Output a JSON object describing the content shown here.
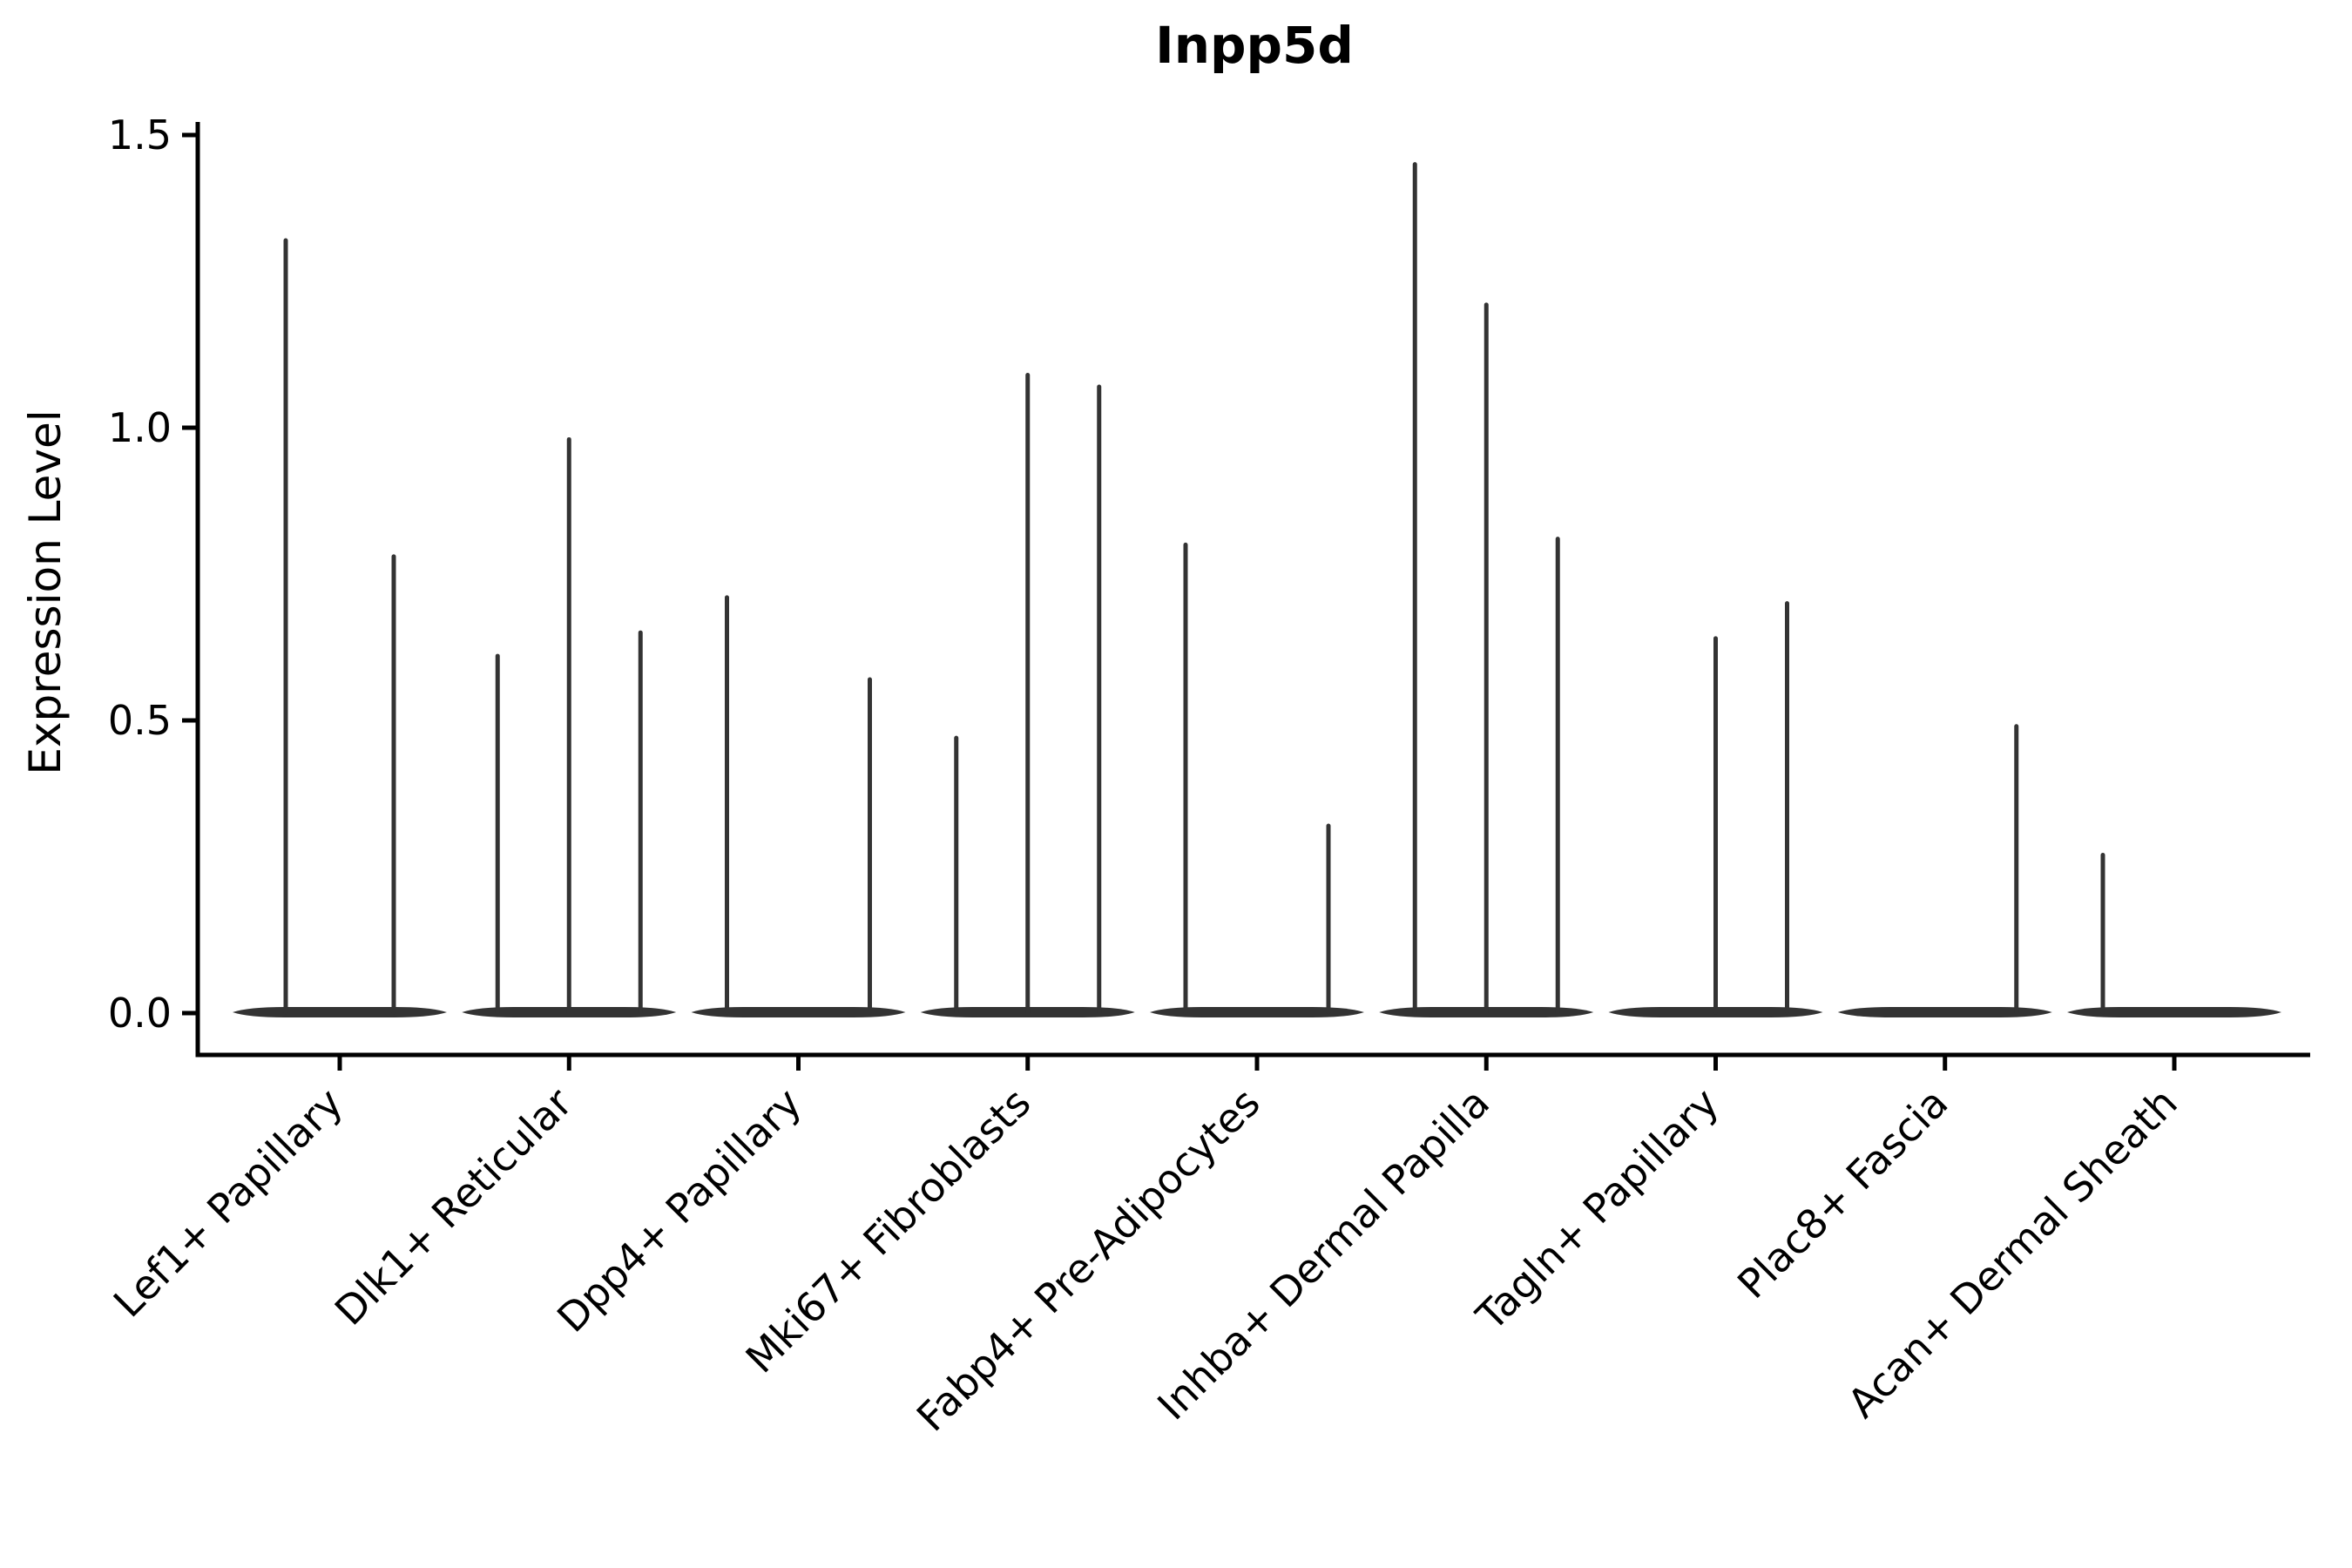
{
  "chart_data": {
    "type": "violin",
    "title": "Inpp5d",
    "xlabel": "",
    "ylabel": "Expression Level",
    "ylim": [
      -0.071,
      1.52
    ],
    "yticks": [
      {
        "value": 0.0,
        "label": "0.0"
      },
      {
        "value": 0.5,
        "label": "0.5"
      },
      {
        "value": 1.0,
        "label": "1.0"
      },
      {
        "value": 1.5,
        "label": "1.5"
      }
    ],
    "grid": false,
    "legend": "none",
    "colors": {
      "violin": "#333333",
      "axis": "#000000",
      "text": "#000000",
      "background": "#ffffff"
    },
    "note": "Each category shows collapsed violins (flat body at 0) with thin density spikes; 'offset' is the sub-violin x-offset in px from the category center, 'peak' is the spike top expression value.",
    "categories": [
      {
        "label": "Lef1+ Papillary",
        "violins": [
          {
            "offset": -62,
            "peak": 1.32
          },
          {
            "offset": 62,
            "peak": 0.78
          }
        ]
      },
      {
        "label": "Dlk1+ Reticular",
        "violins": [
          {
            "offset": -82,
            "peak": 0.61
          },
          {
            "offset": 0,
            "peak": 0.98
          },
          {
            "offset": 82,
            "peak": 0.65
          }
        ]
      },
      {
        "label": "Dpp4+ Papillary",
        "violins": [
          {
            "offset": -82,
            "peak": 0.71
          },
          {
            "offset": 82,
            "peak": 0.57
          }
        ]
      },
      {
        "label": "Mki67+ Fibroblasts",
        "violins": [
          {
            "offset": -82,
            "peak": 0.47
          },
          {
            "offset": 0,
            "peak": 1.09
          },
          {
            "offset": 82,
            "peak": 1.07
          }
        ]
      },
      {
        "label": "Fabp4+ Pre-Adipocytes",
        "violins": [
          {
            "offset": -82,
            "peak": 0.8
          },
          {
            "offset": 82,
            "peak": 0.32
          }
        ]
      },
      {
        "label": "Inhba+ Dermal Papilla",
        "violins": [
          {
            "offset": -82,
            "peak": 1.45
          },
          {
            "offset": 0,
            "peak": 1.21
          },
          {
            "offset": 82,
            "peak": 0.81
          }
        ]
      },
      {
        "label": "Tagln+ Papillary",
        "violins": [
          {
            "offset": 0,
            "peak": 0.64
          },
          {
            "offset": 82,
            "peak": 0.7
          }
        ]
      },
      {
        "label": "Plac8+ Fascia",
        "violins": [
          {
            "offset": 82,
            "peak": 0.49
          }
        ]
      },
      {
        "label": "Acan+ Dermal Sheath",
        "violins": [
          {
            "offset": -82,
            "peak": 0.27
          }
        ]
      }
    ]
  }
}
